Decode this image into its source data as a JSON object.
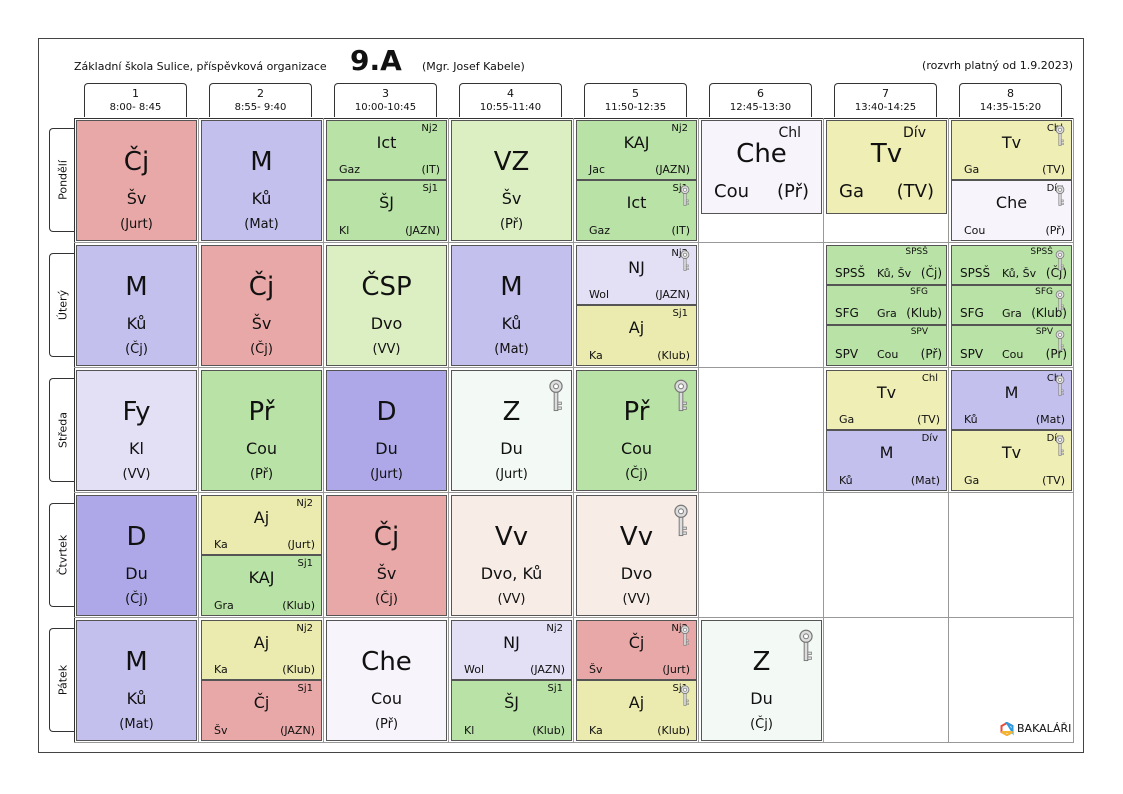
{
  "header": {
    "school": "Základní škola Sulice, příspěvková organizace",
    "class": "9.A",
    "teacher": "(Mgr. Josef Kabele)",
    "valid": "(rozvrh platný od 1.9.2023)"
  },
  "periods": [
    {
      "num": "1",
      "time": "8:00- 8:45"
    },
    {
      "num": "2",
      "time": "8:55- 9:40"
    },
    {
      "num": "3",
      "time": "10:00-10:45"
    },
    {
      "num": "4",
      "time": "10:55-11:40"
    },
    {
      "num": "5",
      "time": "11:50-12:35"
    },
    {
      "num": "6",
      "time": "12:45-13:30"
    },
    {
      "num": "7",
      "time": "13:40-14:25"
    },
    {
      "num": "8",
      "time": "14:35-15:20"
    }
  ],
  "days": [
    "Pondělí",
    "Úterý",
    "Středa",
    "Čtvrtek",
    "Pátek"
  ],
  "colors": {
    "cj": "#e9a8a8",
    "m": "#c4c0ee",
    "vz": "#dcefc3",
    "green": "#b9e3a6",
    "che": "#f7f4fb",
    "tv": "#efeeb5",
    "light": "#e3e0f5",
    "d": "#aea8e8",
    "vv": "#f7ece6",
    "z": "#f3faf5",
    "aj": "#ebebb0",
    "nj": "#e3e0f5"
  },
  "lessons": {
    "mon": {
      "p1": {
        "subj": "Čj",
        "teach": "Šv",
        "room": "(Jurt)"
      },
      "p2": {
        "subj": "M",
        "teach": "Ků",
        "room": "(Mat)"
      },
      "p3a": {
        "grp": "Nj2",
        "subj": "Ict",
        "teach": "Gaz",
        "room": "(IT)"
      },
      "p3b": {
        "grp": "Sj1",
        "subj": "ŠJ",
        "teach": "Kl",
        "room": "(JAZN)"
      },
      "p4": {
        "subj": "VZ",
        "teach": "Šv",
        "room": "(Př)"
      },
      "p5a": {
        "grp": "Nj2",
        "subj": "KAJ",
        "teach": "Jac",
        "room": "(JAZN)"
      },
      "p5b": {
        "grp": "Sj1",
        "subj": "Ict",
        "teach": "Gaz",
        "room": "(IT)"
      },
      "p6": {
        "grp": "Chl",
        "subj": "Che",
        "teach": "Cou",
        "room": "(Př)"
      },
      "p7": {
        "grp": "Dív",
        "subj": "Tv",
        "teach": "Ga",
        "room": "(TV)"
      },
      "p8a": {
        "grp": "Chl",
        "subj": "Tv",
        "teach": "Ga",
        "room": "(TV)"
      },
      "p8b": {
        "grp": "Dív",
        "subj": "Che",
        "teach": "Cou",
        "room": "(Př)"
      }
    },
    "tue": {
      "p1": {
        "subj": "M",
        "teach": "Ků",
        "room": "(Čj)"
      },
      "p2": {
        "subj": "Čj",
        "teach": "Šv",
        "room": "(Čj)"
      },
      "p3": {
        "subj": "ČSP",
        "teach": "Dvo",
        "room": "(VV)"
      },
      "p4": {
        "subj": "M",
        "teach": "Ků",
        "room": "(Mat)"
      },
      "p5a": {
        "grp": "Nj2",
        "subj": "NJ",
        "teach": "Wol",
        "room": "(JAZN)"
      },
      "p5b": {
        "grp": "Sj1",
        "subj": "Aj",
        "teach": "Ka",
        "room": "(Klub)"
      },
      "p7a": {
        "grp": "SPSŠ",
        "subj": "SPSŠ",
        "teach": "Ků, Šv",
        "room": "(Čj)"
      },
      "p7b": {
        "grp": "SFG",
        "subj": "SFG",
        "teach": "Gra",
        "room": "(Klub)"
      },
      "p7c": {
        "grp": "SPV",
        "subj": "SPV",
        "teach": "Cou",
        "room": "(Př)"
      },
      "p8a": {
        "grp": "SPSŠ",
        "subj": "SPSŠ",
        "teach": "Ků, Šv",
        "room": "(Čj)"
      },
      "p8b": {
        "grp": "SFG",
        "subj": "SFG",
        "teach": "Gra",
        "room": "(Klub)"
      },
      "p8c": {
        "grp": "SPV",
        "subj": "SPV",
        "teach": "Cou",
        "room": "(Př)"
      }
    },
    "wed": {
      "p1": {
        "subj": "Fy",
        "teach": "Kl",
        "room": "(VV)"
      },
      "p2": {
        "subj": "Př",
        "teach": "Cou",
        "room": "(Př)"
      },
      "p3": {
        "subj": "D",
        "teach": "Du",
        "room": "(Jurt)"
      },
      "p4": {
        "subj": "Z",
        "teach": "Du",
        "room": "(Jurt)"
      },
      "p5": {
        "subj": "Př",
        "teach": "Cou",
        "room": "(Čj)"
      },
      "p7a": {
        "grp": "Chl",
        "subj": "Tv",
        "teach": "Ga",
        "room": "(TV)"
      },
      "p7b": {
        "grp": "Dív",
        "subj": "M",
        "teach": "Ků",
        "room": "(Mat)"
      },
      "p8a": {
        "grp": "Chl",
        "subj": "M",
        "teach": "Ků",
        "room": "(Mat)"
      },
      "p8b": {
        "grp": "Dív",
        "subj": "Tv",
        "teach": "Ga",
        "room": "(TV)"
      }
    },
    "thu": {
      "p1": {
        "subj": "D",
        "teach": "Du",
        "room": "(Čj)"
      },
      "p2a": {
        "grp": "Nj2",
        "subj": "Aj",
        "teach": "Ka",
        "room": "(Jurt)"
      },
      "p2b": {
        "grp": "Sj1",
        "subj": "KAJ",
        "teach": "Gra",
        "room": "(Klub)"
      },
      "p3": {
        "subj": "Čj",
        "teach": "Šv",
        "room": "(Čj)"
      },
      "p4": {
        "subj": "Vv",
        "teach": "Dvo, Ků",
        "room": "(VV)"
      },
      "p5": {
        "subj": "Vv",
        "teach": "Dvo",
        "room": "(VV)"
      }
    },
    "fri": {
      "p1": {
        "subj": "M",
        "teach": "Ků",
        "room": "(Mat)"
      },
      "p2a": {
        "grp": "Nj2",
        "subj": "Aj",
        "teach": "Ka",
        "room": "(Klub)"
      },
      "p2b": {
        "grp": "Sj1",
        "subj": "Čj",
        "teach": "Šv",
        "room": "(JAZN)"
      },
      "p3": {
        "subj": "Che",
        "teach": "Cou",
        "room": "(Př)"
      },
      "p4a": {
        "grp": "Nj2",
        "subj": "NJ",
        "teach": "Wol",
        "room": "(JAZN)"
      },
      "p4b": {
        "grp": "Sj1",
        "subj": "ŠJ",
        "teach": "Kl",
        "room": "(Klub)"
      },
      "p5a": {
        "grp": "Nj2",
        "subj": "Čj",
        "teach": "Šv",
        "room": "(Jurt)"
      },
      "p5b": {
        "grp": "Sj1",
        "subj": "Aj",
        "teach": "Ka",
        "room": "(Klub)"
      },
      "p6": {
        "subj": "Z",
        "teach": "Du",
        "room": "(Čj)"
      }
    }
  },
  "footer": {
    "brand": "BAKALÁŘI"
  }
}
